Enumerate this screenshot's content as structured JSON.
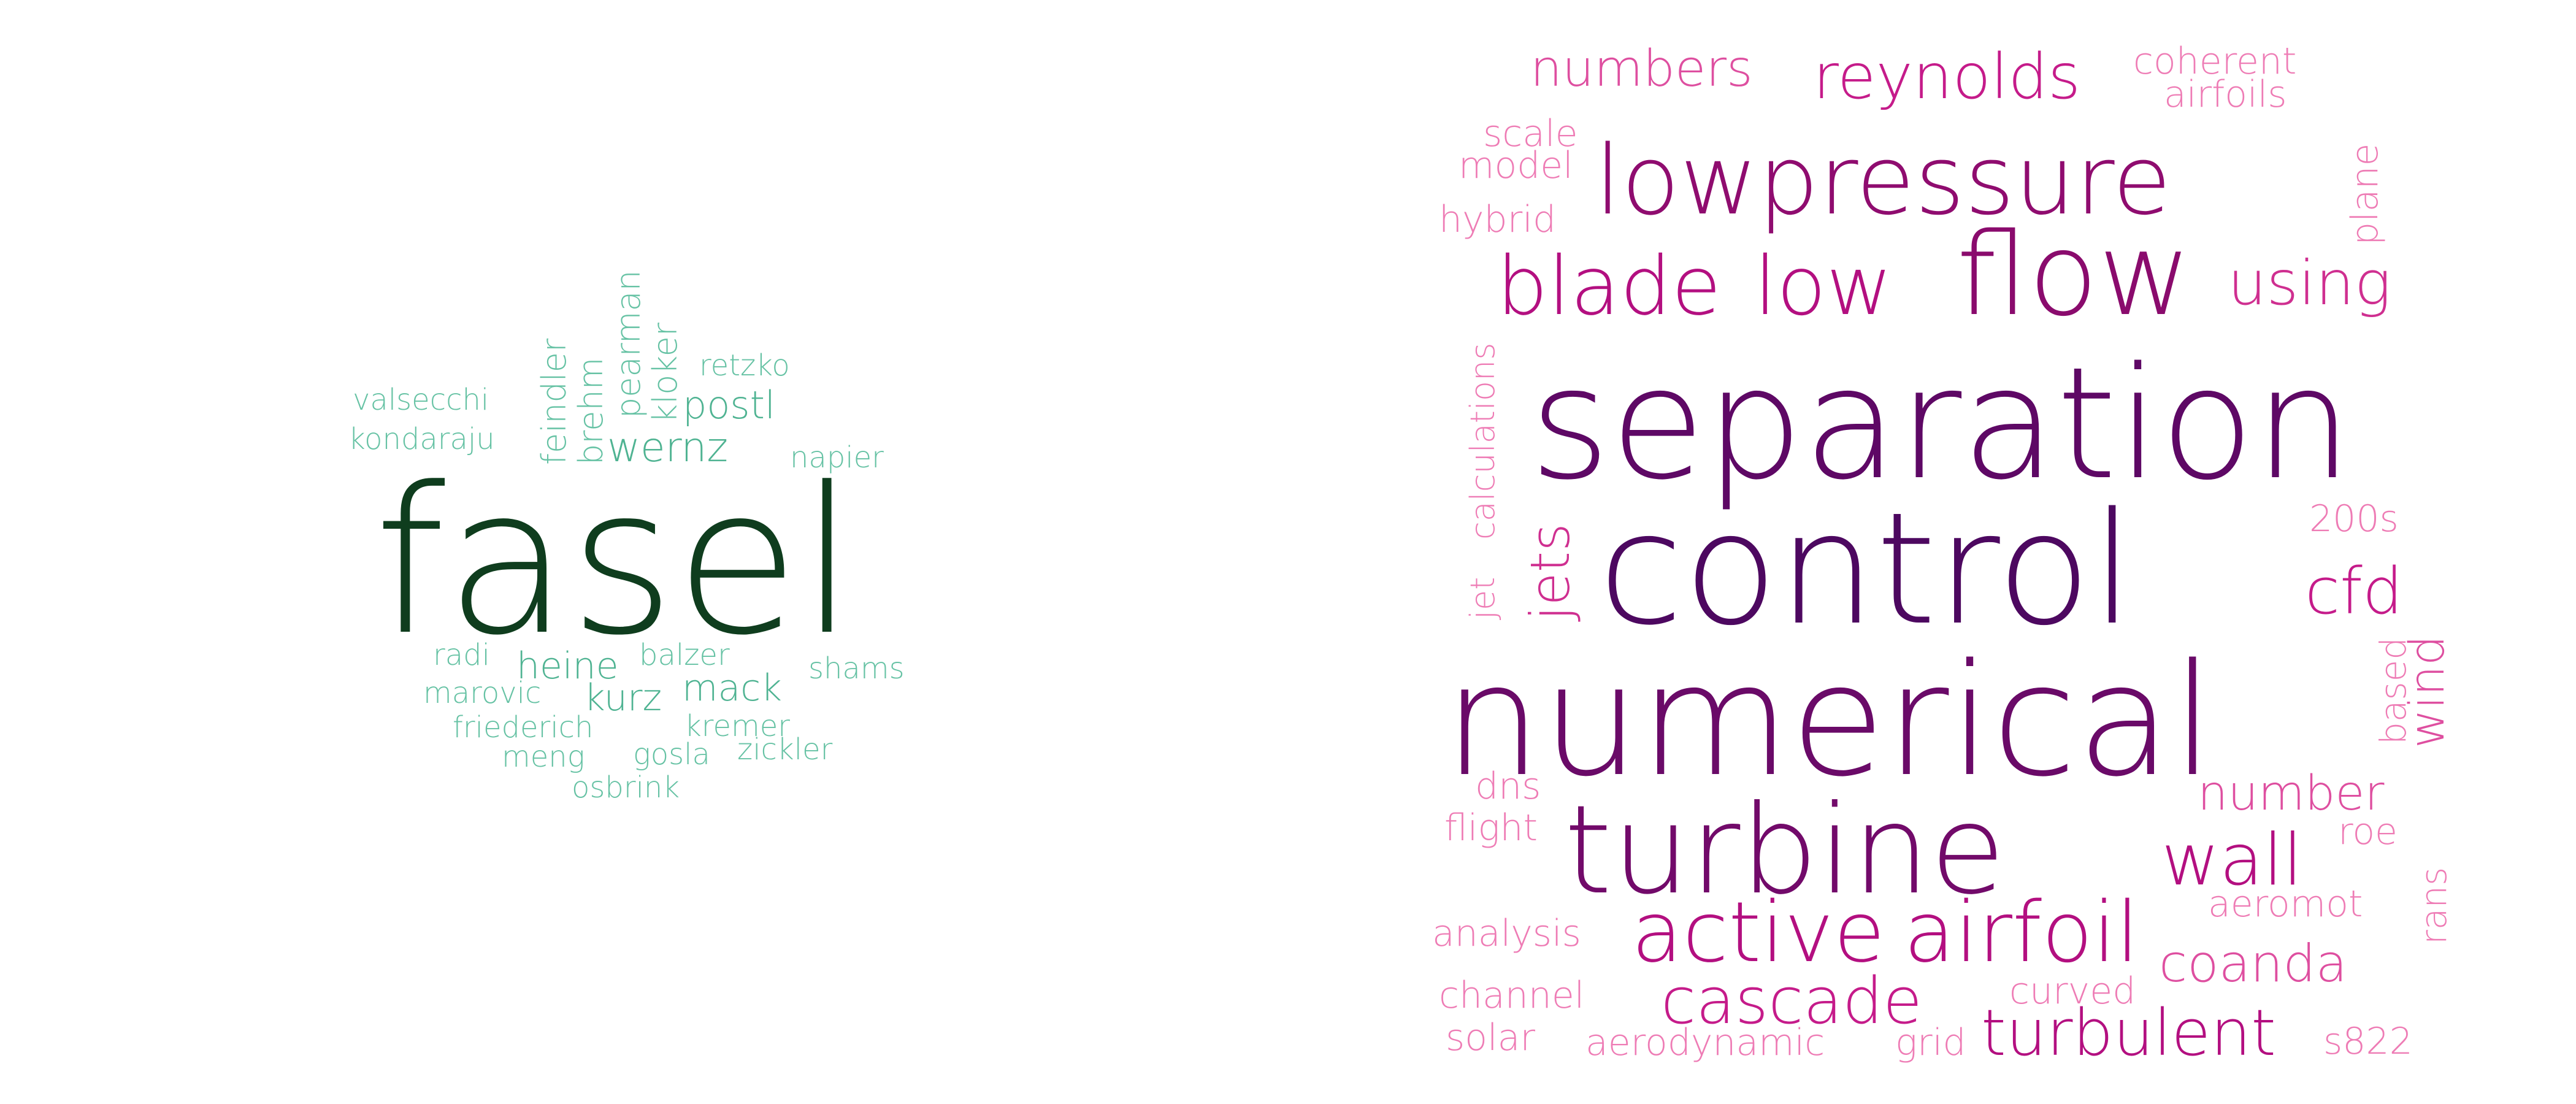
{
  "left_cloud": {
    "words": [
      {
        "text": "fasel",
        "color": "#0f3d1e"
      },
      {
        "text": "valsecchi",
        "color": "#66c2a4"
      },
      {
        "text": "kondaraju",
        "color": "#66c2a4"
      },
      {
        "text": "feindler",
        "color": "#66c2a4"
      },
      {
        "text": "brehm",
        "color": "#66c2a4"
      },
      {
        "text": "pearman",
        "color": "#66c2a4"
      },
      {
        "text": "kloker",
        "color": "#66c2a4"
      },
      {
        "text": "retzko",
        "color": "#66c2a4"
      },
      {
        "text": "postl",
        "color": "#4fb392"
      },
      {
        "text": "wernz",
        "color": "#4fb392"
      },
      {
        "text": "napier",
        "color": "#66c2a4"
      },
      {
        "text": "radi",
        "color": "#66c2a4"
      },
      {
        "text": "heine",
        "color": "#4fb392"
      },
      {
        "text": "balzer",
        "color": "#66c2a4"
      },
      {
        "text": "shams",
        "color": "#66c2a4"
      },
      {
        "text": "marovic",
        "color": "#66c2a4"
      },
      {
        "text": "kurz",
        "color": "#4fb392"
      },
      {
        "text": "mack",
        "color": "#4fb392"
      },
      {
        "text": "friederich",
        "color": "#66c2a4"
      },
      {
        "text": "kremer",
        "color": "#66c2a4"
      },
      {
        "text": "meng",
        "color": "#66c2a4"
      },
      {
        "text": "gosla",
        "color": "#66c2a4"
      },
      {
        "text": "zickler",
        "color": "#66c2a4"
      },
      {
        "text": "osbrink",
        "color": "#66c2a4"
      }
    ]
  },
  "right_cloud": {
    "words": [
      {
        "text": "numbers",
        "color": "#de4fa0"
      },
      {
        "text": "reynolds",
        "color": "#c51b8a"
      },
      {
        "text": "coherent",
        "color": "#ee7cb5"
      },
      {
        "text": "airfoils",
        "color": "#ee7cb5"
      },
      {
        "text": "scale",
        "color": "#ee7cb5"
      },
      {
        "text": "model",
        "color": "#ee7cb5"
      },
      {
        "text": "lowpressure",
        "color": "#8f0c6f"
      },
      {
        "text": "plane",
        "color": "#ee7cb5"
      },
      {
        "text": "hybrid",
        "color": "#ee7cb5"
      },
      {
        "text": "blade",
        "color": "#b30f80"
      },
      {
        "text": "low",
        "color": "#b30f80"
      },
      {
        "text": "flow",
        "color": "#8a0b6d"
      },
      {
        "text": "using",
        "color": "#cf2f90"
      },
      {
        "text": "calculations",
        "color": "#ee7cb5"
      },
      {
        "text": "jet",
        "color": "#ee7cb5"
      },
      {
        "text": "jets",
        "color": "#cf2f90"
      },
      {
        "text": "separation",
        "color": "#5e0865"
      },
      {
        "text": "control",
        "color": "#4d0860"
      },
      {
        "text": "200s",
        "color": "#ee7cb5"
      },
      {
        "text": "cfd",
        "color": "#c51b8a"
      },
      {
        "text": "numerical",
        "color": "#6a0a68"
      },
      {
        "text": "based",
        "color": "#ee7cb5"
      },
      {
        "text": "wind",
        "color": "#de4fa0"
      },
      {
        "text": "dns",
        "color": "#ee7cb5"
      },
      {
        "text": "flight",
        "color": "#ee7cb5"
      },
      {
        "text": "turbine",
        "color": "#720a6a"
      },
      {
        "text": "number",
        "color": "#de4fa0"
      },
      {
        "text": "wall",
        "color": "#b30f80"
      },
      {
        "text": "roe",
        "color": "#ee7cb5"
      },
      {
        "text": "analysis",
        "color": "#ee7cb5"
      },
      {
        "text": "active",
        "color": "#b30f80"
      },
      {
        "text": "airfoil",
        "color": "#b30f80"
      },
      {
        "text": "aeromot",
        "color": "#ee7cb5"
      },
      {
        "text": "rans",
        "color": "#ee7cb5"
      },
      {
        "text": "coanda",
        "color": "#de4fa0"
      },
      {
        "text": "channel",
        "color": "#ee7cb5"
      },
      {
        "text": "cascade",
        "color": "#c51b8a"
      },
      {
        "text": "curved",
        "color": "#ee7cb5"
      },
      {
        "text": "solar",
        "color": "#ee7cb5"
      },
      {
        "text": "aerodynamic",
        "color": "#ee7cb5"
      },
      {
        "text": "grid",
        "color": "#ee7cb5"
      },
      {
        "text": "turbulent",
        "color": "#b30f80"
      },
      {
        "text": "s822",
        "color": "#ee7cb5"
      }
    ]
  }
}
